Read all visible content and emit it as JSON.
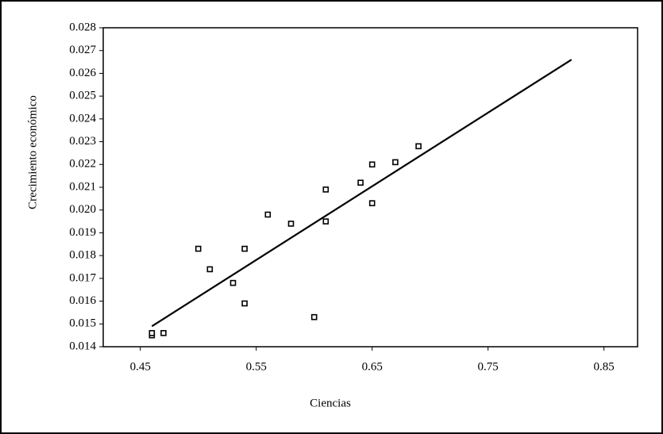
{
  "chart_data": {
    "type": "scatter",
    "x_label": "Ciencias",
    "y_label": "Crecimiento económico",
    "xlim": [
      0.418,
      0.879
    ],
    "ylim": [
      0.014,
      0.028
    ],
    "xticks": [
      0.45,
      0.55,
      0.65,
      0.75,
      0.85
    ],
    "yticks": [
      0.014,
      0.015,
      0.016,
      0.017,
      0.018,
      0.019,
      {
        "value": 0.02,
        "label": "0.020"
      },
      0.021,
      0.022,
      0.023,
      0.024,
      0.025,
      0.026,
      0.027,
      0.028
    ],
    "grid": false,
    "series": [
      {
        "color": "#000000",
        "marker": "square",
        "x": [
          0.46,
          0.46,
          0.47,
          0.5,
          0.51,
          0.53,
          0.54,
          0.54,
          0.56,
          0.58,
          0.6,
          0.61,
          0.61,
          0.64,
          0.65,
          0.65,
          0.67,
          0.69
        ],
        "values": [
          0.0145,
          0.0146,
          0.0146,
          0.0183,
          0.0174,
          0.0168,
          0.0183,
          0.0159,
          0.0198,
          0.0194,
          0.0153,
          0.0195,
          0.0209,
          0.0212,
          0.022,
          0.0203,
          0.0221,
          0.0228
        ]
      },
      {
        "color": "#000000",
        "marker": "none",
        "x": [
          0.46,
          0.822
        ],
        "values": [
          0.0149,
          0.0266
        ]
      }
    ]
  }
}
